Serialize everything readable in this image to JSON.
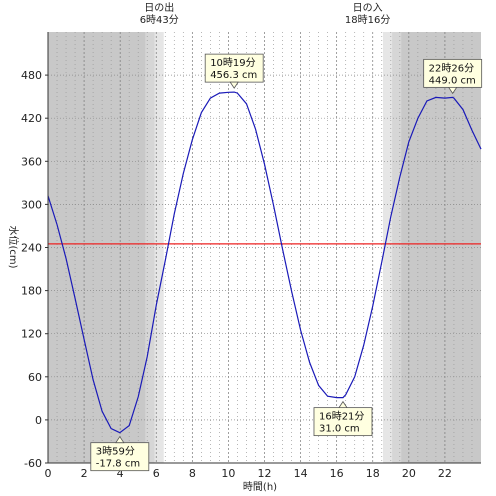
{
  "chart_data": {
    "type": "line",
    "xlabel": "時間(h)",
    "ylabel": "水位(cm)",
    "xlim": [
      0,
      24
    ],
    "ylim": [
      -60,
      540
    ],
    "x_ticks": [
      0,
      2,
      4,
      6,
      8,
      10,
      12,
      14,
      16,
      18,
      20,
      22
    ],
    "y_ticks": [
      -60,
      0,
      60,
      120,
      180,
      240,
      300,
      360,
      420,
      480
    ],
    "reference_line": {
      "value": 245,
      "color": "#ee2222"
    },
    "line_color": "#1a1ab8",
    "sun": [
      {
        "label": "日の出",
        "time_label": "6時43分",
        "hour": 6.72
      },
      {
        "label": "日の入",
        "time_label": "18時16分",
        "hour": 18.27
      }
    ],
    "night_color": "#c8c8c8",
    "twilight_colors": [
      "#d6d6d6",
      "#e6e6e6"
    ],
    "series": [
      {
        "x": [
          0,
          0.5,
          1,
          1.5,
          2,
          2.5,
          3,
          3.5,
          3.98,
          4.5,
          5,
          5.5,
          6,
          6.5,
          7,
          7.5,
          8,
          8.5,
          9,
          9.5,
          10,
          10.32,
          10.5,
          11,
          11.5,
          12,
          12.5,
          13,
          13.5,
          14,
          14.5,
          15,
          15.5,
          16,
          16.35,
          16.5,
          17,
          17.5,
          18,
          18.5,
          19,
          19.5,
          20,
          20.5,
          21,
          21.5,
          22,
          22.43,
          22.5,
          23,
          23.5,
          24
        ],
        "y": [
          312,
          272,
          225,
          169,
          112,
          56,
          12,
          -12,
          -17.8,
          -8,
          32,
          88,
          160,
          222,
          287,
          343,
          390,
          428,
          448,
          455,
          456,
          456.3,
          455,
          440,
          405,
          356,
          299,
          238,
          179,
          125,
          80,
          48,
          33,
          31,
          31.0,
          35,
          60,
          104,
          159,
          220,
          283,
          338,
          387,
          420,
          444,
          449,
          448,
          449.0,
          448,
          432,
          403,
          377
        ]
      }
    ],
    "annotations": [
      {
        "time": "10時19分",
        "value": "456.3 cm",
        "x": 10.32,
        "y": 456.3
      },
      {
        "time": "22時26分",
        "value": "449.0 cm",
        "x": 22.43,
        "y": 449.0
      },
      {
        "time": "3時59分",
        "value": "-17.8 cm",
        "x": 3.98,
        "y": -17.8
      },
      {
        "time": "16時21分",
        "value": "31.0 cm",
        "x": 16.35,
        "y": 31.0
      }
    ]
  }
}
